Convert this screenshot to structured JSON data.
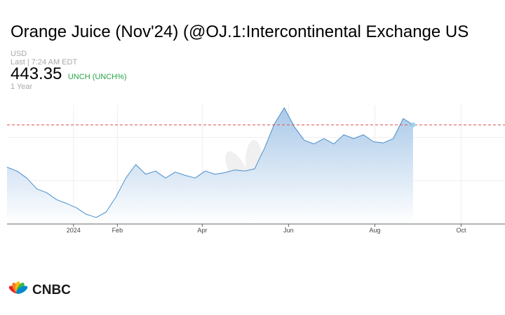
{
  "header": {
    "title": "Orange Juice (Nov'24) (@OJ.1:Intercontinental Exchange US",
    "currency": "USD",
    "last_label": "Last | 7:24 AM EDT",
    "price": "443.35",
    "change": "UNCH (UNCH%)",
    "range": "1 Year"
  },
  "colors": {
    "line": "#4a8fcb",
    "fill_top": "#a9c8e8",
    "fill_bottom": "#ffffff",
    "reference_line": "#d9534f",
    "change_text": "#2aa345"
  },
  "chart_data": {
    "type": "area",
    "title": "",
    "xlabel": "",
    "ylabel": "",
    "x_tick_labels": [
      "2024",
      "Feb",
      "Apr",
      "Jun",
      "Aug",
      "Oct"
    ],
    "x_tick_dates": [
      "2024-01-01",
      "2024-02-01",
      "2024-04-01",
      "2024-06-01",
      "2024-08-01",
      "2024-10-01"
    ],
    "x_range": [
      "2023-11-15",
      "2024-11-01"
    ],
    "y_range": [
      260,
      480
    ],
    "reference_value": 443.35,
    "grid": true,
    "series": [
      {
        "x": [
          "2023-11-15",
          "2023-11-22",
          "2023-11-29",
          "2023-12-06",
          "2023-12-13",
          "2023-12-20",
          "2023-12-27",
          "2024-01-03",
          "2024-01-10",
          "2024-01-17",
          "2024-01-24",
          "2024-01-31",
          "2024-02-07",
          "2024-02-14",
          "2024-02-21",
          "2024-02-28",
          "2024-03-06",
          "2024-03-13",
          "2024-03-20",
          "2024-03-27",
          "2024-04-03",
          "2024-04-10",
          "2024-04-17",
          "2024-04-24",
          "2024-05-01",
          "2024-05-08",
          "2024-05-15",
          "2024-05-22",
          "2024-05-29",
          "2024-06-05",
          "2024-06-12",
          "2024-06-19",
          "2024-06-26",
          "2024-07-03",
          "2024-07-10",
          "2024-07-17",
          "2024-07-24",
          "2024-07-31",
          "2024-08-07",
          "2024-08-14",
          "2024-08-21",
          "2024-08-28"
        ],
        "values": [
          365,
          358,
          345,
          325,
          318,
          305,
          298,
          290,
          278,
          272,
          282,
          310,
          345,
          370,
          352,
          358,
          345,
          356,
          350,
          345,
          358,
          352,
          355,
          360,
          358,
          362,
          400,
          445,
          475,
          440,
          415,
          408,
          418,
          408,
          425,
          418,
          425,
          412,
          410,
          418,
          455,
          443.35
        ]
      }
    ]
  },
  "watermark": {
    "text": "CNBC"
  },
  "footer": {
    "logo_text": "CNBC"
  }
}
